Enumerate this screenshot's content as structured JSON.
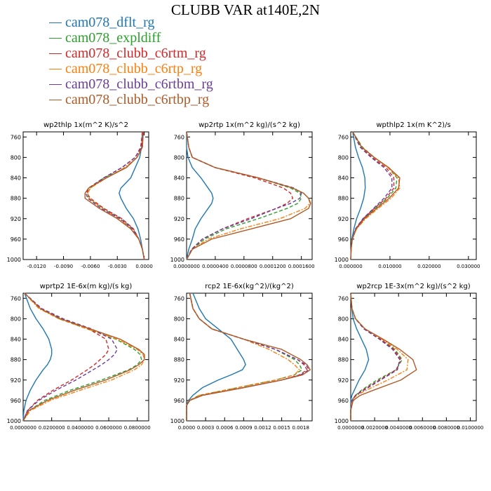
{
  "title": "CLUBB VAR at140E,2N",
  "legend": [
    {
      "label": "cam078_dflt_rg",
      "color": "#1f77b4",
      "dash": "solid"
    },
    {
      "label": "cam078_expldiff",
      "color": "#2ca02c",
      "dash": "dashed"
    },
    {
      "label": "cam078_clubb_c6rtm_rg",
      "color": "#d62728",
      "dash": "dashed"
    },
    {
      "label": "cam078_clubb_c6rtp_rg",
      "color": "#ff7f0e",
      "dash": "dashdot"
    },
    {
      "label": "cam078_clubb_c6rtbm_rg",
      "color": "#6a3d9a",
      "dash": "dashed"
    },
    {
      "label": "cam078_clubb_c6rtbp_rg",
      "color": "#b05a28",
      "dash": "solid"
    }
  ],
  "chart_data": [
    {
      "type": "line",
      "title": "wp2thlp   1x(m^2 K)/s^2",
      "xlim": [
        -0.0135,
        0.0005
      ],
      "ylim": [
        1000,
        750
      ],
      "xticks": [
        "-0.0120",
        "-0.0090",
        "-0.0060",
        "-0.0030",
        "0.0000"
      ],
      "xtick_values": [
        -0.012,
        -0.009,
        -0.006,
        -0.003,
        0.0
      ],
      "yticks": [
        760,
        800,
        840,
        880,
        920,
        960,
        1000
      ],
      "y": [
        750,
        780,
        800,
        820,
        840,
        860,
        870,
        880,
        900,
        920,
        940,
        960,
        980,
        1000
      ],
      "series": [
        {
          "values": [
            -0.0002,
            -0.0003,
            -0.0005,
            -0.001,
            -0.0015,
            -0.0026,
            -0.0028,
            -0.0026,
            -0.002,
            -0.0012,
            -0.0007,
            -0.0004,
            -0.0002,
            0
          ]
        },
        {
          "values": [
            -0.0001,
            -0.0002,
            -0.0008,
            -0.002,
            -0.0045,
            -0.006,
            -0.0063,
            -0.0062,
            -0.0045,
            -0.0025,
            -0.0012,
            -0.0006,
            -0.0002,
            0
          ]
        },
        {
          "values": [
            -0.0002,
            -0.0004,
            -0.001,
            -0.0025,
            -0.0045,
            -0.0062,
            -0.0064,
            -0.006,
            -0.0045,
            -0.0025,
            -0.0012,
            -0.0006,
            -0.0002,
            0
          ]
        },
        {
          "values": [
            -0.0001,
            -0.0003,
            -0.0008,
            -0.0022,
            -0.0042,
            -0.006,
            -0.0063,
            -0.0061,
            -0.0047,
            -0.0028,
            -0.0014,
            -0.0006,
            -0.0002,
            0
          ]
        },
        {
          "values": [
            -0.0001,
            -0.0003,
            -0.001,
            -0.0025,
            -0.0045,
            -0.0062,
            -0.0065,
            -0.0063,
            -0.0048,
            -0.0027,
            -0.0013,
            -0.0006,
            -0.0002,
            0
          ]
        },
        {
          "values": [
            -0.0001,
            -0.0002,
            -0.0008,
            -0.002,
            -0.0042,
            -0.0062,
            -0.0066,
            -0.0066,
            -0.005,
            -0.003,
            -0.0015,
            -0.0006,
            -0.0002,
            0
          ]
        }
      ]
    },
    {
      "type": "line",
      "title": "wp2rtp   1x(m^2 kg)/(s^2 kg)",
      "xlim": [
        0,
        0.000175
      ],
      "ylim": [
        1000,
        750
      ],
      "xticks": [
        "0.0000000",
        "0.0000400",
        "0.0000800",
        "0.0001200",
        "0.0001600"
      ],
      "xtick_values": [
        0,
        4e-05,
        8e-05,
        0.00012,
        0.00016
      ],
      "yticks": [
        760,
        800,
        840,
        880,
        920,
        960,
        1000
      ],
      "y": [
        750,
        780,
        800,
        820,
        840,
        860,
        870,
        880,
        890,
        900,
        920,
        940,
        960,
        980,
        1000
      ],
      "series": [
        {
          "values": [
            0,
            0,
            2e-06,
            8e-06,
            2e-05,
            3e-05,
            3.5e-05,
            3.7e-05,
            3.5e-05,
            3e-05,
            2e-05,
            1.2e-05,
            8e-06,
            3e-06,
            0
          ]
        },
        {
          "values": [
            0,
            3e-06,
            8e-06,
            4e-05,
            0.0001,
            0.000145,
            0.000158,
            0.00016,
            0.000155,
            0.00014,
            0.0001,
            5.5e-05,
            2.5e-05,
            8e-06,
            0
          ]
        },
        {
          "values": [
            0,
            3e-06,
            8e-06,
            4e-05,
            9.5e-05,
            0.000135,
            0.000145,
            0.000148,
            0.00014,
            0.000125,
            8.5e-05,
            5e-05,
            2.2e-05,
            7e-06,
            0
          ]
        },
        {
          "values": [
            0,
            3e-06,
            8e-06,
            4e-05,
            0.0001,
            0.000148,
            0.000163,
            0.00017,
            0.000172,
            0.000165,
            0.00013,
            7.5e-05,
            3e-05,
            8e-06,
            0
          ]
        },
        {
          "values": [
            0,
            3e-06,
            8e-06,
            4e-05,
            0.0001,
            0.00015,
            0.00016,
            0.000158,
            0.000145,
            0.000125,
            9e-05,
            5e-05,
            2.2e-05,
            7e-06,
            0
          ]
        },
        {
          "values": [
            0,
            3e-06,
            8e-06,
            4e-05,
            0.0001,
            0.000148,
            0.000163,
            0.00017,
            0.000173,
            0.00017,
            0.000145,
            9e-05,
            3.5e-05,
            8e-06,
            0
          ]
        }
      ]
    },
    {
      "type": "line",
      "title": "wpthlp2   1x(m K^2)/s",
      "xlim": [
        0,
        0.032
      ],
      "ylim": [
        1000,
        750
      ],
      "xticks": [
        "0.000000",
        "0.010000",
        "0.020000",
        "0.030000"
      ],
      "xtick_values": [
        0,
        0.01,
        0.02,
        0.03
      ],
      "yticks": [
        760,
        800,
        840,
        880,
        920,
        960,
        1000
      ],
      "y": [
        750,
        780,
        800,
        820,
        840,
        860,
        880,
        900,
        920,
        940,
        960,
        980,
        1000
      ],
      "series": [
        {
          "values": [
            0.0005,
            0.0012,
            0.002,
            0.003,
            0.0036,
            0.0037,
            0.0033,
            0.0025,
            0.0015,
            0.0008,
            0.0003,
            0.0001,
            0
          ]
        },
        {
          "values": [
            0.0005,
            0.003,
            0.006,
            0.0095,
            0.0118,
            0.0115,
            0.0093,
            0.0062,
            0.0033,
            0.0013,
            0.0004,
            0.0001,
            0
          ]
        },
        {
          "values": [
            0.0005,
            0.0025,
            0.0055,
            0.009,
            0.011,
            0.011,
            0.009,
            0.006,
            0.0032,
            0.0013,
            0.0004,
            0.0001,
            0
          ]
        },
        {
          "values": [
            0.0005,
            0.0028,
            0.006,
            0.0095,
            0.0122,
            0.0125,
            0.0103,
            0.007,
            0.0038,
            0.0015,
            0.0004,
            0.0001,
            0
          ]
        },
        {
          "values": [
            0.0005,
            0.0024,
            0.0052,
            0.0085,
            0.0105,
            0.0105,
            0.0085,
            0.0058,
            0.0031,
            0.0012,
            0.0004,
            0.0001,
            0
          ]
        },
        {
          "values": [
            0.0005,
            0.0028,
            0.006,
            0.0097,
            0.0125,
            0.0122,
            0.0098,
            0.0066,
            0.0035,
            0.0014,
            0.0004,
            0.0001,
            0
          ]
        }
      ]
    },
    {
      "type": "line",
      "title": "wprtp2   1E-6x(m kg)/(s kg)",
      "xlim": [
        0,
        0.088
      ],
      "ylim": [
        1000,
        750
      ],
      "xticks": [
        "0.0000000",
        "0.0200000",
        "0.0400000",
        "0.0600000",
        "0.0800000"
      ],
      "xtick_values": [
        0,
        0.02,
        0.04,
        0.06,
        0.08
      ],
      "yticks": [
        760,
        800,
        840,
        880,
        920,
        960,
        1000
      ],
      "y": [
        750,
        780,
        800,
        820,
        840,
        860,
        870,
        880,
        890,
        900,
        920,
        940,
        960,
        980,
        1000
      ],
      "series": [
        {
          "values": [
            0.001,
            0.005,
            0.009,
            0.014,
            0.018,
            0.02,
            0.02,
            0.019,
            0.017,
            0.014,
            0.009,
            0.005,
            0.002,
            0.0005,
            0
          ]
        },
        {
          "values": [
            0.001,
            0.012,
            0.025,
            0.045,
            0.065,
            0.078,
            0.082,
            0.083,
            0.08,
            0.074,
            0.055,
            0.033,
            0.015,
            0.004,
            0
          ]
        },
        {
          "values": [
            0.001,
            0.012,
            0.027,
            0.046,
            0.058,
            0.06,
            0.058,
            0.054,
            0.05,
            0.045,
            0.034,
            0.021,
            0.01,
            0.003,
            0
          ]
        },
        {
          "values": [
            0.001,
            0.011,
            0.025,
            0.045,
            0.066,
            0.08,
            0.084,
            0.085,
            0.083,
            0.078,
            0.062,
            0.04,
            0.019,
            0.005,
            0
          ]
        },
        {
          "values": [
            0.001,
            0.013,
            0.028,
            0.048,
            0.062,
            0.066,
            0.064,
            0.06,
            0.055,
            0.049,
            0.037,
            0.023,
            0.011,
            0.003,
            0
          ]
        },
        {
          "values": [
            0.001,
            0.012,
            0.026,
            0.047,
            0.068,
            0.081,
            0.085,
            0.085,
            0.081,
            0.075,
            0.058,
            0.036,
            0.017,
            0.004,
            0
          ]
        }
      ]
    },
    {
      "type": "line",
      "title": "rcp2   1E-6x(kg^2)/(kg^2)",
      "xlim": [
        0,
        0.00198
      ],
      "ylim": [
        1000,
        750
      ],
      "xticks": [
        "0.0000",
        "0.0003",
        "0.0006",
        "0.0009",
        "0.0012",
        "0.0015",
        "0.0018"
      ],
      "xtick_values": [
        0,
        0.0003,
        0.0006,
        0.0009,
        0.0012,
        0.0015,
        0.0018
      ],
      "yticks": [
        760,
        800,
        840,
        880,
        920,
        960,
        1000
      ],
      "y": [
        750,
        780,
        800,
        820,
        840,
        860,
        880,
        890,
        900,
        910,
        920,
        935,
        950,
        960,
        970,
        980,
        1000
      ],
      "series": [
        {
          "values": [
            0.0001,
            0.0002,
            0.0003,
            0.0005,
            0.0007,
            0.0008,
            0.0009,
            0.00093,
            0.00088,
            0.0007,
            0.0005,
            0.00025,
            0.0001,
            3e-05,
            0,
            0,
            0
          ]
        },
        {
          "values": [
            5e-05,
            0.0001,
            0.0002,
            0.0004,
            0.0009,
            0.0014,
            0.0017,
            0.00178,
            0.00182,
            0.0017,
            0.0014,
            0.0008,
            0.0002,
            4e-05,
            0,
            0,
            0
          ]
        },
        {
          "values": [
            5e-05,
            0.0001,
            0.0002,
            0.0004,
            0.0009,
            0.0014,
            0.00175,
            0.00185,
            0.0019,
            0.00178,
            0.0015,
            0.0009,
            0.00025,
            5e-05,
            0,
            0,
            0
          ]
        },
        {
          "values": [
            5e-05,
            0.0001,
            0.0002,
            0.0004,
            0.0009,
            0.0013,
            0.0016,
            0.0017,
            0.00178,
            0.0017,
            0.0014,
            0.0008,
            0.0002,
            4e-05,
            0,
            0,
            0
          ]
        },
        {
          "values": [
            5e-05,
            0.0001,
            0.0002,
            0.0004,
            0.0009,
            0.0014,
            0.00175,
            0.00188,
            0.00193,
            0.0018,
            0.0015,
            0.0009,
            0.00025,
            5e-05,
            0,
            0,
            0
          ]
        },
        {
          "values": [
            5e-05,
            0.0001,
            0.0002,
            0.0004,
            0.0009,
            0.0015,
            0.0018,
            0.0019,
            0.00195,
            0.00183,
            0.0015,
            0.0009,
            0.00025,
            5e-05,
            0,
            0,
            0
          ]
        }
      ]
    },
    {
      "type": "line",
      "title": "wp2rcp   1E-3x(m^2 kg)/(s^2 kg)",
      "xlim": [
        0,
        0.0105
      ],
      "ylim": [
        1000,
        750
      ],
      "xticks": [
        "0.0000000",
        "0.0020000",
        "0.0040000",
        "0.0060000",
        "0.0080000",
        "0.0100000"
      ],
      "xtick_values": [
        0,
        0.002,
        0.004,
        0.006,
        0.008,
        0.01
      ],
      "yticks": [
        760,
        800,
        840,
        880,
        920,
        960,
        1000
      ],
      "y": [
        750,
        780,
        800,
        820,
        840,
        860,
        880,
        900,
        920,
        940,
        950,
        960,
        980,
        1000
      ],
      "series": [
        {
          "values": [
            0,
            0.0001,
            0.0002,
            0.0005,
            0.0009,
            0.0013,
            0.0015,
            0.0012,
            0.0007,
            0.0003,
            0.0001,
            0,
            0,
            0
          ]
        },
        {
          "values": [
            0,
            0.0001,
            0.0004,
            0.0012,
            0.0025,
            0.0037,
            0.0043,
            0.0038,
            0.0022,
            0.0009,
            0.0004,
            0.0001,
            0,
            0
          ]
        },
        {
          "values": [
            0,
            0.0001,
            0.0004,
            0.0012,
            0.0025,
            0.0036,
            0.0042,
            0.0038,
            0.0024,
            0.001,
            0.0004,
            0.0001,
            0,
            0
          ]
        },
        {
          "values": [
            0,
            0.0001,
            0.0004,
            0.0012,
            0.0026,
            0.0039,
            0.0048,
            0.0047,
            0.0031,
            0.0013,
            0.0005,
            0.0001,
            0,
            0
          ]
        },
        {
          "values": [
            0,
            0.0001,
            0.0004,
            0.0011,
            0.0024,
            0.0035,
            0.0041,
            0.0039,
            0.0025,
            0.0011,
            0.0004,
            0.0001,
            0,
            0
          ]
        },
        {
          "values": [
            0,
            0.0001,
            0.0004,
            0.0012,
            0.0027,
            0.0041,
            0.0052,
            0.0055,
            0.0042,
            0.0019,
            0.0008,
            0.0002,
            0,
            0
          ]
        }
      ]
    }
  ]
}
